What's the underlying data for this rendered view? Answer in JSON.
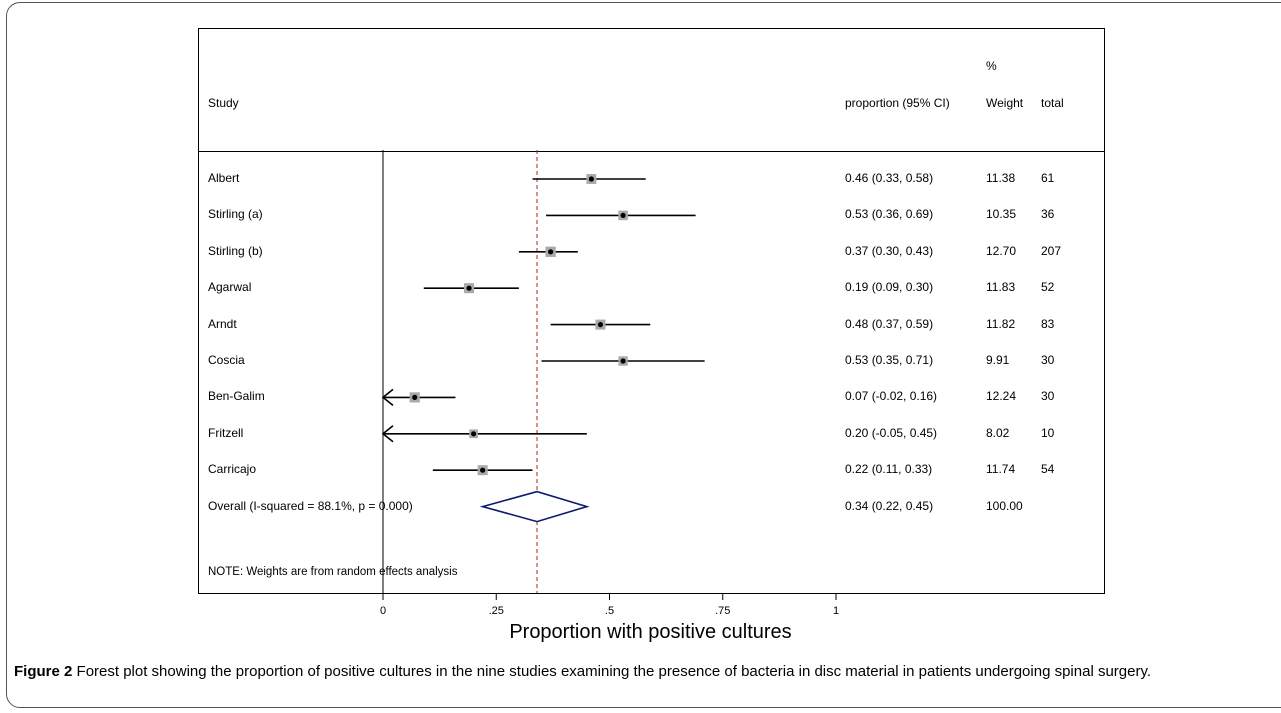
{
  "headers": {
    "study": "Study",
    "estimate": "proportion (95% CI)",
    "weight_top": "%",
    "weight": "Weight",
    "total": "total"
  },
  "chart_data": {
    "type": "forest",
    "xlabel": "Proportion with positive cultures",
    "xlim": [
      0,
      1
    ],
    "x_ticks": [
      0,
      0.25,
      0.5,
      0.75,
      1
    ],
    "x_tick_labels": [
      "0",
      ".25",
      ".5",
      ".75",
      "1"
    ],
    "null_line": 0,
    "pooled_line": 0.34,
    "studies": [
      {
        "name": "Albert",
        "est": 0.46,
        "lo": 0.33,
        "hi": 0.58,
        "label": "0.46 (0.33, 0.58)",
        "weight": "11.38",
        "total": "61"
      },
      {
        "name": "Stirling (a)",
        "est": 0.53,
        "lo": 0.36,
        "hi": 0.69,
        "label": "0.53 (0.36, 0.69)",
        "weight": "10.35",
        "total": "36"
      },
      {
        "name": "Stirling (b)",
        "est": 0.37,
        "lo": 0.3,
        "hi": 0.43,
        "label": "0.37 (0.30, 0.43)",
        "weight": "12.70",
        "total": "207"
      },
      {
        "name": "Agarwal",
        "est": 0.19,
        "lo": 0.09,
        "hi": 0.3,
        "label": "0.19 (0.09, 0.30)",
        "weight": "11.83",
        "total": "52"
      },
      {
        "name": "Arndt",
        "est": 0.48,
        "lo": 0.37,
        "hi": 0.59,
        "label": "0.48 (0.37, 0.59)",
        "weight": "11.82",
        "total": "83"
      },
      {
        "name": "Coscia",
        "est": 0.53,
        "lo": 0.35,
        "hi": 0.71,
        "label": "0.53 (0.35, 0.71)",
        "weight": "9.91",
        "total": "30"
      },
      {
        "name": "Ben-Galim",
        "est": 0.07,
        "lo": -0.02,
        "hi": 0.16,
        "label": "0.07 (-0.02, 0.16)",
        "weight": "12.24",
        "total": "30"
      },
      {
        "name": "Fritzell",
        "est": 0.2,
        "lo": -0.05,
        "hi": 0.45,
        "label": "0.20 (-0.05, 0.45)",
        "weight": "8.02",
        "total": "10"
      },
      {
        "name": "Carricajo",
        "est": 0.22,
        "lo": 0.11,
        "hi": 0.33,
        "label": "0.22 (0.11, 0.33)",
        "weight": "11.74",
        "total": "54"
      }
    ],
    "overall": {
      "name": "Overall  (I-squared = 88.1%, p = 0.000)",
      "est": 0.34,
      "lo": 0.22,
      "hi": 0.45,
      "label": "0.34 (0.22, 0.45)",
      "weight": "100.00"
    },
    "note": "NOTE: Weights are from random effects analysis",
    "colors": {
      "ci_line": "#000000",
      "box": "#a9a9a9",
      "pooled_line": "#b22222",
      "diamond": "#0a1a6e"
    }
  },
  "caption": {
    "label": "Figure 2",
    "text": " Forest plot showing the proportion of positive cultures in the nine studies examining the presence of bacteria in disc material in patients undergoing spinal surgery."
  }
}
